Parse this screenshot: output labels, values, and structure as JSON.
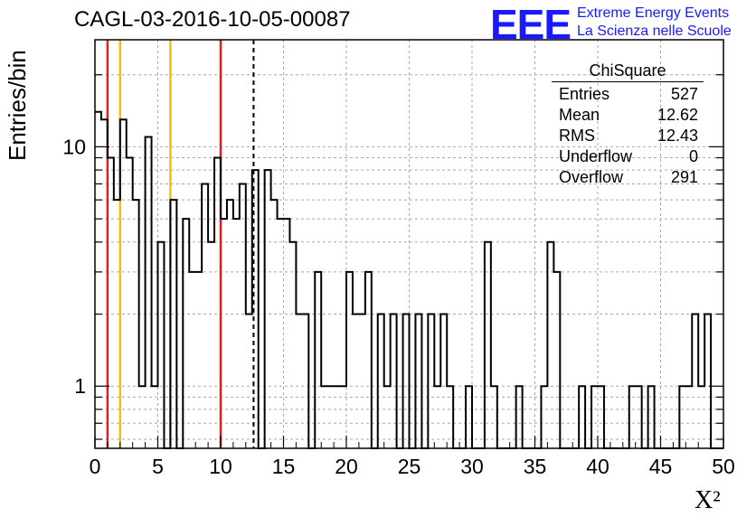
{
  "header": {
    "title": "CAGL-03-2016-10-05-00087"
  },
  "logo": {
    "mark": "EEE",
    "line1": "Extreme Energy Events",
    "line2": "La Scienza nelle Scuole"
  },
  "colors": {
    "red": "#e02020",
    "yellow": "#f2c200",
    "logo_blue": "#1a1aff",
    "grid": "#aaaaaa"
  },
  "stats_box": {
    "name": "ChiSquare",
    "rows": [
      {
        "label": "Entries",
        "value": "527"
      },
      {
        "label": "Mean",
        "value": "12.62"
      },
      {
        "label": "RMS",
        "value": "12.43"
      },
      {
        "label": "Underflow",
        "value": "0"
      },
      {
        "label": "Overflow",
        "value": "291"
      }
    ]
  },
  "chart_data": {
    "type": "bar",
    "style": "step-histogram",
    "xlabel": "X²",
    "ylabel": "Entries/bin",
    "xlim": [
      0,
      50
    ],
    "ylim": [
      0.55,
      28
    ],
    "yscale": "log",
    "grid": true,
    "bin_width": 0.5,
    "x_ticks": [
      "0",
      "5",
      "10",
      "15",
      "20",
      "25",
      "30",
      "35",
      "40",
      "45",
      "50"
    ],
    "y_ticks": [
      {
        "value": 1,
        "label": "1"
      },
      {
        "value": 10,
        "label": "10"
      }
    ],
    "values": [
      14,
      13,
      9,
      6,
      13,
      9,
      6,
      1,
      11,
      1,
      4,
      0,
      6,
      0,
      5,
      3,
      3,
      7,
      4,
      9,
      5,
      6,
      5,
      7,
      2,
      8,
      0,
      8,
      6,
      5,
      5,
      4,
      2,
      2,
      0,
      3,
      1,
      1,
      1,
      1,
      3,
      2,
      2,
      3,
      0,
      2,
      1,
      2,
      0,
      2,
      0,
      2,
      0,
      2,
      1,
      2,
      1,
      0,
      0,
      1,
      0,
      0,
      4,
      1,
      0,
      0,
      0,
      1,
      0,
      0,
      0,
      1,
      4,
      3,
      0,
      0,
      0,
      1,
      0,
      1,
      1,
      0,
      0,
      0,
      0,
      1,
      1,
      0,
      1,
      0,
      0,
      0,
      0,
      1,
      1,
      2,
      1,
      2,
      0,
      0
    ],
    "vertical_lines": [
      {
        "x": 1,
        "color": "red",
        "style": "solid"
      },
      {
        "x": 2,
        "color": "yellow",
        "style": "solid"
      },
      {
        "x": 6,
        "color": "yellow",
        "style": "solid"
      },
      {
        "x": 10,
        "color": "red",
        "style": "solid"
      },
      {
        "x": 12.62,
        "color": "black",
        "style": "dashed"
      }
    ]
  }
}
